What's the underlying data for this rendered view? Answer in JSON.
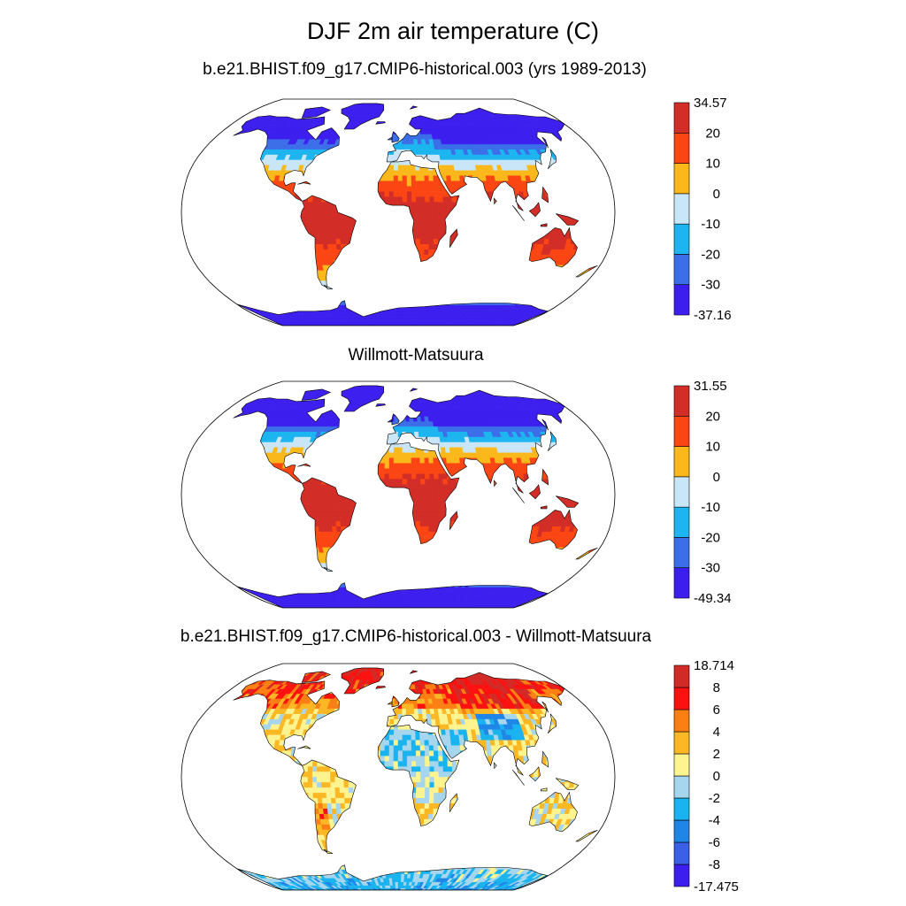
{
  "figure": {
    "title": "DJF 2m air temperature (C)"
  },
  "palettes": {
    "temperature": [
      "#3c1fef",
      "#3b6ee8",
      "#1cb5ef",
      "#c9e6f8",
      "#fbb81b",
      "#fb4614",
      "#d22d27"
    ],
    "difference": [
      "#3c1fef",
      "#3b5fe6",
      "#1f86e8",
      "#19b4ef",
      "#a6d5ee",
      "#fdf38f",
      "#fbb824",
      "#fb7f13",
      "#fb1210",
      "#d22a26"
    ],
    "land_outline": "#000000",
    "ocean": "#ffffff"
  },
  "chart_data": [
    {
      "type": "heatmap",
      "projection": "Robinson",
      "title": "b.e21.BHIST.f09_g17.CMIP6-historical.003 (yrs 1989-2013)",
      "variable": "DJF 2m air temperature",
      "units": "C",
      "colorbar": {
        "labels": [
          "34.57",
          "20",
          "10",
          "0",
          "-10",
          "-20",
          "-30",
          "-37.16"
        ],
        "min": -37.16,
        "max": 34.57,
        "levels": [
          -30,
          -20,
          -10,
          0,
          10,
          20
        ]
      }
    },
    {
      "type": "heatmap",
      "projection": "Robinson",
      "title": "Willmott-Matsuura",
      "variable": "DJF 2m air temperature",
      "units": "C",
      "colorbar": {
        "labels": [
          "31.55",
          "20",
          "10",
          "0",
          "-10",
          "-20",
          "-30",
          "-49.34"
        ],
        "min": -49.34,
        "max": 31.55,
        "levels": [
          -30,
          -20,
          -10,
          0,
          10,
          20
        ]
      }
    },
    {
      "type": "heatmap",
      "projection": "Robinson",
      "title": "b.e21.BHIST.f09_g17.CMIP6-historical.003 - Willmott-Matsuura",
      "variable": "DJF 2m air temperature difference",
      "units": "C",
      "colorbar": {
        "labels": [
          "18.714",
          "8",
          "6",
          "4",
          "2",
          "0",
          "-2",
          "-4",
          "-6",
          "-8",
          "-17.475"
        ],
        "min": -17.475,
        "max": 18.714,
        "levels": [
          -8,
          -6,
          -4,
          -2,
          0,
          2,
          4,
          6,
          8
        ]
      }
    }
  ]
}
